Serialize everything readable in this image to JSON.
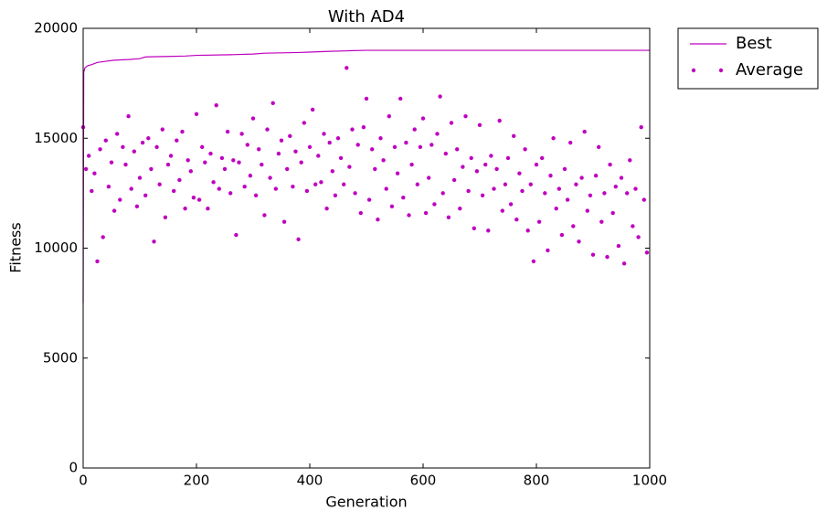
{
  "chart_data": {
    "type": "line_scatter",
    "title": "With AD4",
    "x_label": "Generation",
    "y_label": "Fitness",
    "xlim": [
      0,
      1000
    ],
    "xticks": [
      0,
      200,
      400,
      600,
      800,
      1000
    ],
    "ylim": [
      0,
      20000
    ],
    "yticks": [
      0,
      5000,
      10000,
      15000,
      20000
    ],
    "legend": "upper-right-outside",
    "series": [
      {
        "name": "Best",
        "style": "line",
        "color": "#bf00bf",
        "x": [
          0,
          1,
          3,
          8,
          15,
          25,
          40,
          55,
          80,
          100,
          110,
          150,
          180,
          200,
          260,
          300,
          320,
          380,
          400,
          430,
          470,
          500,
          1000
        ],
        "values": [
          7500,
          18000,
          18200,
          18300,
          18350,
          18450,
          18500,
          18550,
          18580,
          18620,
          18700,
          18720,
          18740,
          18770,
          18800,
          18830,
          18870,
          18900,
          18920,
          18950,
          18980,
          19000,
          19000
        ]
      },
      {
        "name": "Average",
        "style": "dots",
        "color": "#bf00bf",
        "x": [
          0,
          5,
          10,
          15,
          20,
          25,
          30,
          35,
          40,
          45,
          50,
          55,
          60,
          65,
          70,
          75,
          80,
          85,
          90,
          95,
          100,
          105,
          110,
          115,
          120,
          125,
          130,
          135,
          140,
          145,
          150,
          155,
          160,
          165,
          170,
          175,
          180,
          185,
          190,
          195,
          200,
          205,
          210,
          215,
          220,
          225,
          230,
          235,
          240,
          245,
          250,
          255,
          260,
          265,
          270,
          275,
          280,
          285,
          290,
          295,
          300,
          305,
          310,
          315,
          320,
          325,
          330,
          335,
          340,
          345,
          350,
          355,
          360,
          365,
          370,
          375,
          380,
          385,
          390,
          395,
          400,
          405,
          410,
          415,
          420,
          425,
          430,
          435,
          440,
          445,
          450,
          455,
          460,
          465,
          470,
          475,
          480,
          485,
          490,
          495,
          500,
          505,
          510,
          515,
          520,
          525,
          530,
          535,
          540,
          545,
          550,
          555,
          560,
          565,
          570,
          575,
          580,
          585,
          590,
          595,
          600,
          605,
          610,
          615,
          620,
          625,
          630,
          635,
          640,
          645,
          650,
          655,
          660,
          665,
          670,
          675,
          680,
          685,
          690,
          695,
          700,
          705,
          710,
          715,
          720,
          725,
          730,
          735,
          740,
          745,
          750,
          755,
          760,
          765,
          770,
          775,
          780,
          785,
          790,
          795,
          800,
          805,
          810,
          815,
          820,
          825,
          830,
          835,
          840,
          845,
          850,
          855,
          860,
          865,
          870,
          875,
          880,
          885,
          890,
          895,
          900,
          905,
          910,
          915,
          920,
          925,
          930,
          935,
          940,
          945,
          950,
          955,
          960,
          965,
          970,
          975,
          980,
          985,
          990,
          995
        ],
        "values": [
          15500,
          13600,
          14200,
          12600,
          13400,
          9400,
          14500,
          10500,
          14900,
          12800,
          13900,
          11700,
          15200,
          12200,
          14600,
          13800,
          16000,
          12700,
          14400,
          11900,
          13200,
          14800,
          12400,
          15000,
          13600,
          10300,
          14600,
          12900,
          15400,
          11400,
          13800,
          14200,
          12600,
          14900,
          13100,
          15300,
          11800,
          14000,
          13500,
          12300,
          16100,
          12200,
          14600,
          13900,
          11800,
          14300,
          13000,
          16500,
          12700,
          14100,
          13600,
          15300,
          12500,
          14000,
          10600,
          13900,
          15200,
          12800,
          14700,
          13300,
          15900,
          12400,
          14500,
          13800,
          11500,
          15400,
          13200,
          16600,
          12700,
          14300,
          14900,
          11200,
          13600,
          15100,
          12800,
          14400,
          10400,
          13900,
          15700,
          12600,
          14600,
          16300,
          12900,
          14200,
          13000,
          15200,
          11800,
          14800,
          13500,
          12400,
          15000,
          14100,
          12900,
          18200,
          13700,
          15400,
          12500,
          14700,
          11600,
          15500,
          16800,
          12200,
          14500,
          13600,
          11300,
          15000,
          14000,
          12700,
          16000,
          11900,
          14600,
          13400,
          16800,
          12300,
          14800,
          11500,
          13800,
          15400,
          12900,
          14600,
          15900,
          11600,
          13200,
          14700,
          12000,
          15200,
          16900,
          12500,
          14300,
          11400,
          15700,
          13100,
          14500,
          11800,
          13700,
          16000,
          12600,
          14100,
          10900,
          13500,
          15600,
          12400,
          13800,
          10800,
          14200,
          12700,
          13600,
          15800,
          11700,
          12900,
          14100,
          12000,
          15100,
          11300,
          13400,
          12600,
          14500,
          10800,
          12900,
          9400,
          13800,
          11200,
          14100,
          12500,
          9900,
          13300,
          15000,
          11800,
          12700,
          10600,
          13600,
          12200,
          14800,
          11000,
          12900,
          10300,
          13200,
          15300,
          11700,
          12400,
          9700,
          13300,
          14600,
          11200,
          12500,
          9600,
          13800,
          11600,
          12800,
          10100,
          13200,
          9300,
          12500,
          14000,
          11000,
          12700,
          10500,
          15500,
          12200,
          9800
        ]
      }
    ]
  }
}
